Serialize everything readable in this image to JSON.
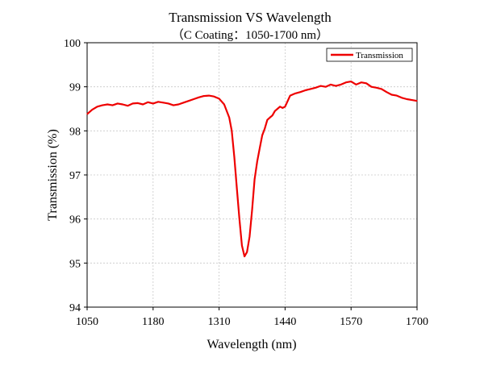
{
  "chart_data": {
    "type": "line",
    "title": "Transmission VS Wavelength",
    "subtitle": "（C Coating：1050-1700 nm）",
    "xlabel": "Wavelength (nm)",
    "ylabel": "Transmission (%)",
    "xlim": [
      1050,
      1700
    ],
    "ylim": [
      94,
      100
    ],
    "xticks": [
      "1050",
      "1180",
      "1310",
      "1440",
      "1570",
      "1700"
    ],
    "yticks": [
      "94",
      "95",
      "96",
      "97",
      "98",
      "99",
      "100"
    ],
    "grid": true,
    "legend_position": "top-right",
    "series": [
      {
        "name": "Transmission",
        "color": "#ee0000",
        "x": [
          1050,
          1060,
          1070,
          1080,
          1090,
          1100,
          1110,
          1120,
          1130,
          1140,
          1150,
          1160,
          1170,
          1180,
          1190,
          1200,
          1210,
          1220,
          1230,
          1240,
          1250,
          1260,
          1270,
          1280,
          1290,
          1300,
          1310,
          1320,
          1330,
          1335,
          1340,
          1345,
          1350,
          1355,
          1360,
          1365,
          1370,
          1375,
          1380,
          1385,
          1390,
          1395,
          1400,
          1405,
          1410,
          1415,
          1420,
          1425,
          1430,
          1435,
          1440,
          1450,
          1460,
          1470,
          1480,
          1490,
          1500,
          1510,
          1520,
          1530,
          1540,
          1550,
          1560,
          1570,
          1580,
          1590,
          1600,
          1610,
          1620,
          1630,
          1640,
          1650,
          1660,
          1670,
          1680,
          1690,
          1700
        ],
        "y": [
          98.38,
          98.48,
          98.55,
          98.58,
          98.6,
          98.58,
          98.62,
          98.6,
          98.57,
          98.62,
          98.63,
          98.6,
          98.65,
          98.62,
          98.66,
          98.64,
          98.62,
          98.58,
          98.6,
          98.64,
          98.68,
          98.72,
          98.76,
          98.79,
          98.8,
          98.78,
          98.73,
          98.6,
          98.3,
          98.0,
          97.4,
          96.7,
          96.0,
          95.4,
          95.15,
          95.25,
          95.6,
          96.2,
          96.9,
          97.3,
          97.6,
          97.9,
          98.05,
          98.25,
          98.3,
          98.35,
          98.45,
          98.5,
          98.55,
          98.52,
          98.55,
          98.8,
          98.85,
          98.88,
          98.92,
          98.95,
          98.98,
          99.02,
          99.0,
          99.05,
          99.02,
          99.05,
          99.1,
          99.12,
          99.05,
          99.1,
          99.08,
          99.0,
          98.98,
          98.95,
          98.88,
          98.82,
          98.8,
          98.75,
          98.72,
          98.7,
          98.68
        ]
      }
    ]
  }
}
